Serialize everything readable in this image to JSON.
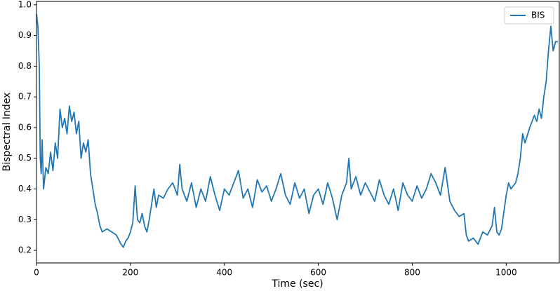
{
  "chart_data": {
    "type": "line",
    "xlabel": "Time (sec)",
    "ylabel": "Bispectral Index",
    "x": [
      0,
      3,
      6,
      8,
      10,
      12,
      15,
      20,
      25,
      30,
      35,
      40,
      45,
      50,
      55,
      60,
      65,
      70,
      75,
      80,
      85,
      90,
      95,
      100,
      105,
      110,
      115,
      120,
      125,
      130,
      135,
      140,
      150,
      160,
      170,
      180,
      185,
      190,
      195,
      200,
      205,
      210,
      215,
      220,
      225,
      230,
      235,
      240,
      245,
      250,
      255,
      260,
      270,
      280,
      290,
      300,
      305,
      310,
      320,
      330,
      340,
      350,
      360,
      370,
      380,
      390,
      400,
      410,
      420,
      430,
      440,
      450,
      460,
      470,
      480,
      490,
      500,
      510,
      520,
      530,
      540,
      550,
      560,
      570,
      580,
      590,
      600,
      610,
      620,
      630,
      640,
      650,
      660,
      665,
      670,
      680,
      690,
      700,
      710,
      720,
      730,
      740,
      750,
      760,
      770,
      780,
      790,
      800,
      810,
      820,
      830,
      840,
      850,
      860,
      870,
      880,
      890,
      900,
      910,
      915,
      920,
      930,
      940,
      950,
      960,
      970,
      975,
      980,
      985,
      990,
      1000,
      1005,
      1010,
      1020,
      1025,
      1030,
      1035,
      1040,
      1050,
      1055,
      1060,
      1065,
      1070,
      1075,
      1080,
      1085,
      1090,
      1095,
      1100,
      1105,
      1110
    ],
    "series": [
      {
        "name": "BIS",
        "color": "#1f77b4",
        "values": [
          0.97,
          0.93,
          0.8,
          0.5,
          0.45,
          0.56,
          0.4,
          0.47,
          0.45,
          0.52,
          0.46,
          0.55,
          0.5,
          0.66,
          0.6,
          0.63,
          0.58,
          0.67,
          0.62,
          0.65,
          0.58,
          0.62,
          0.5,
          0.55,
          0.52,
          0.56,
          0.45,
          0.4,
          0.35,
          0.32,
          0.28,
          0.26,
          0.27,
          0.26,
          0.25,
          0.22,
          0.21,
          0.23,
          0.24,
          0.26,
          0.29,
          0.41,
          0.3,
          0.29,
          0.32,
          0.28,
          0.26,
          0.3,
          0.35,
          0.4,
          0.34,
          0.38,
          0.37,
          0.4,
          0.42,
          0.38,
          0.48,
          0.4,
          0.36,
          0.42,
          0.34,
          0.4,
          0.36,
          0.44,
          0.38,
          0.33,
          0.4,
          0.38,
          0.42,
          0.46,
          0.37,
          0.4,
          0.34,
          0.43,
          0.39,
          0.41,
          0.36,
          0.4,
          0.45,
          0.38,
          0.35,
          0.42,
          0.37,
          0.4,
          0.32,
          0.38,
          0.4,
          0.35,
          0.42,
          0.37,
          0.3,
          0.38,
          0.42,
          0.5,
          0.4,
          0.44,
          0.38,
          0.42,
          0.39,
          0.36,
          0.43,
          0.38,
          0.35,
          0.4,
          0.33,
          0.42,
          0.38,
          0.36,
          0.41,
          0.37,
          0.4,
          0.45,
          0.42,
          0.38,
          0.47,
          0.36,
          0.33,
          0.31,
          0.32,
          0.25,
          0.23,
          0.24,
          0.22,
          0.26,
          0.25,
          0.28,
          0.34,
          0.26,
          0.25,
          0.27,
          0.38,
          0.42,
          0.4,
          0.42,
          0.45,
          0.5,
          0.58,
          0.55,
          0.6,
          0.62,
          0.64,
          0.62,
          0.66,
          0.63,
          0.7,
          0.75,
          0.85,
          0.93,
          0.85,
          0.88,
          0.88
        ]
      }
    ],
    "xlim": [
      0,
      1113
    ],
    "xticks": [
      0,
      200,
      400,
      600,
      800,
      1000
    ],
    "ylim": [
      0.159,
      1.011
    ],
    "yticks": [
      0.2,
      0.3,
      0.4,
      0.5,
      0.6,
      0.7,
      0.8,
      0.9,
      {
        "value": 1,
        "label": "1.0"
      }
    ],
    "legend": "upper right"
  }
}
